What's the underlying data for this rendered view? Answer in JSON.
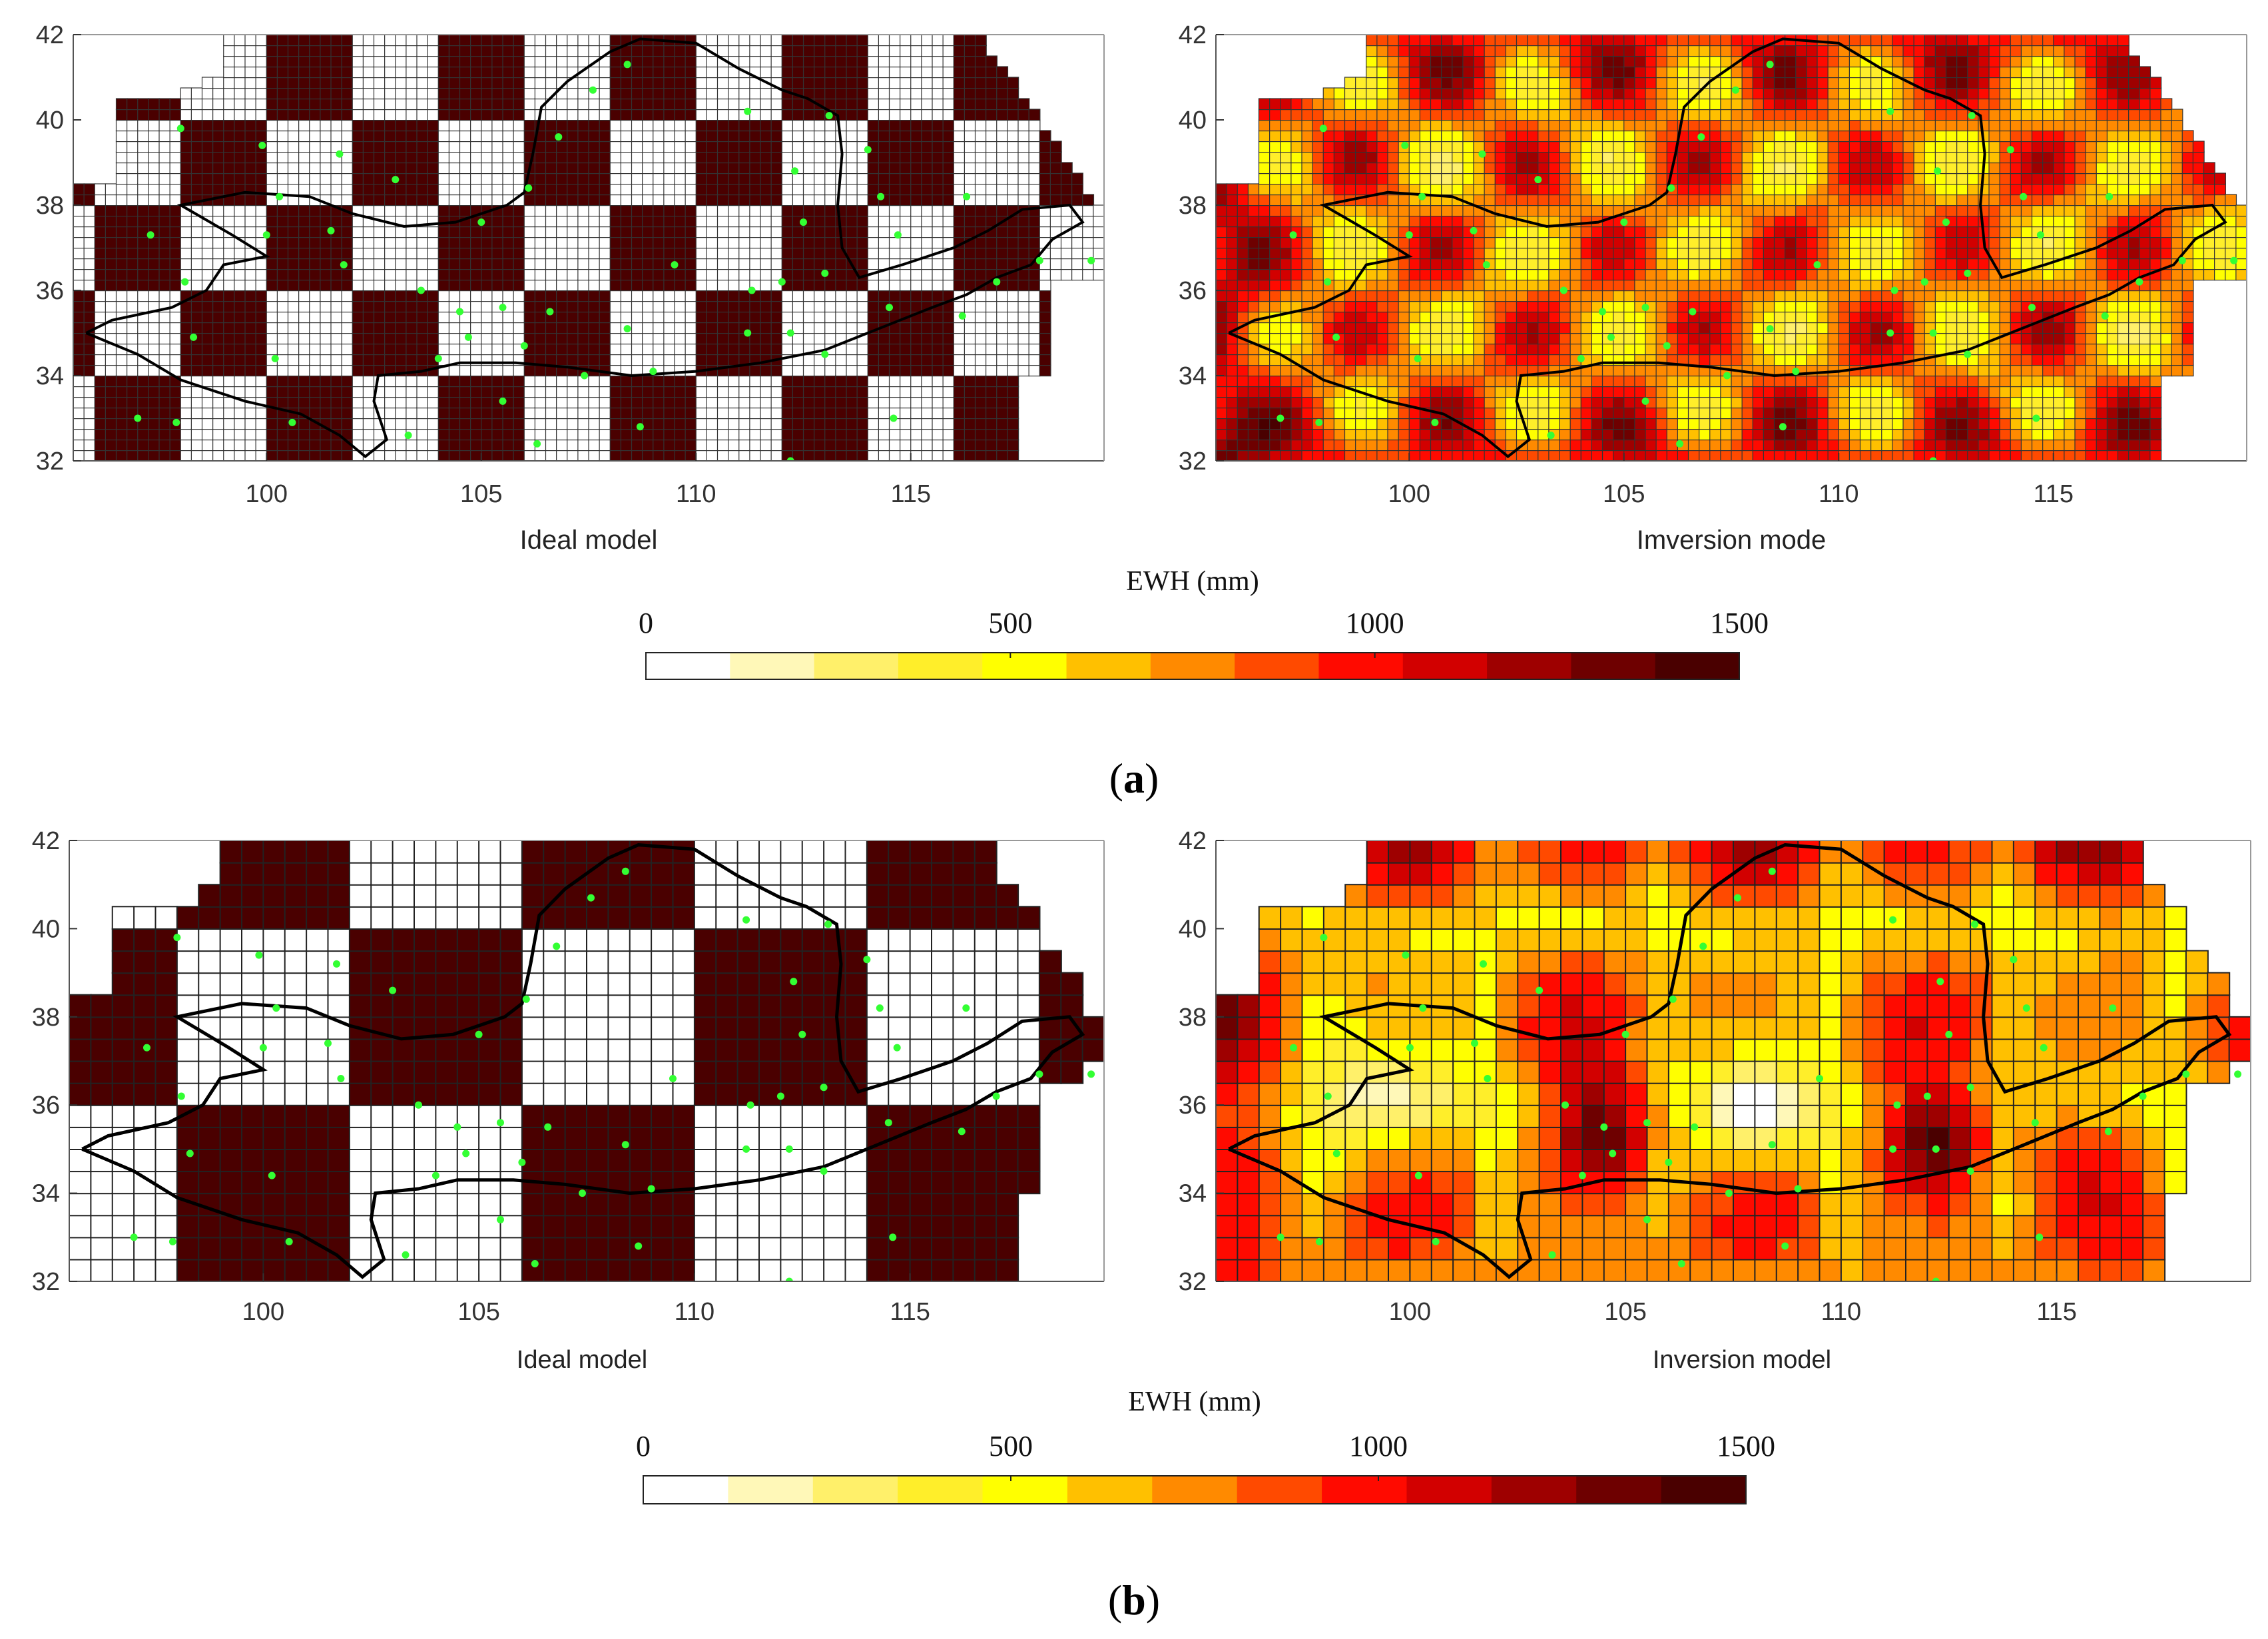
{
  "panels": [
    {
      "label": "a",
      "colorbar": {
        "title": "EWH (mm)",
        "ticks": [
          0,
          500,
          1000,
          1500
        ],
        "min": 0,
        "max": 1500,
        "colors": [
          "#ffffff",
          "#fff8b8",
          "#fff06a",
          "#ffee2a",
          "#ffff00",
          "#ffc000",
          "#ff8a00",
          "#ff4a00",
          "#ff0a00",
          "#d20000",
          "#9e0000",
          "#6e0000",
          "#4a0000"
        ]
      }
    },
    {
      "label": "b",
      "colorbar": {
        "title": "EWH (mm)",
        "ticks": [
          0,
          500,
          1000,
          1500
        ],
        "min": 0,
        "max": 1500,
        "colors": [
          "#ffffff",
          "#fff8b8",
          "#fff06a",
          "#ffee2a",
          "#ffff00",
          "#ffc000",
          "#ff8a00",
          "#ff4a00",
          "#ff0a00",
          "#d20000",
          "#9e0000",
          "#6e0000",
          "#4a0000"
        ]
      }
    }
  ],
  "chart_data": [
    {
      "type": "heatmap",
      "title": "",
      "xlabel": "Ideal model",
      "ylabel": "",
      "xlim": [
        95.5,
        119.5
      ],
      "ylim": [
        32,
        42
      ],
      "xticks": [
        100,
        105,
        110,
        115
      ],
      "yticks": [
        32,
        34,
        36,
        38,
        40,
        42
      ],
      "grid": true,
      "cell_size_deg": 0.25,
      "pattern": "checkerboard",
      "block_size_deg": 2,
      "block_values": [
        0,
        1500
      ]
    },
    {
      "type": "heatmap",
      "title": "",
      "xlabel": "Imversion mode",
      "ylabel": "",
      "xlim": [
        95.5,
        119.5
      ],
      "ylim": [
        32,
        42
      ],
      "xticks": [
        100,
        105,
        110,
        115
      ],
      "yticks": [
        32,
        34,
        36,
        38,
        40,
        42
      ],
      "grid": true,
      "cell_size_deg": 0.25,
      "pattern": "inversion",
      "block_size_deg": 2,
      "value_range": [
        0,
        1500
      ]
    },
    {
      "type": "heatmap",
      "title": "",
      "xlabel": "Ideal model",
      "ylabel": "",
      "xlim": [
        95.5,
        119.5
      ],
      "ylim": [
        32,
        42
      ],
      "xticks": [
        100,
        105,
        110,
        115
      ],
      "yticks": [
        32,
        34,
        36,
        38,
        40,
        42
      ],
      "grid": true,
      "cell_size_deg": 0.5,
      "pattern": "checkerboard",
      "block_size_deg": 4,
      "block_values": [
        0,
        1500
      ]
    },
    {
      "type": "heatmap",
      "title": "",
      "xlabel": "Inversion model",
      "ylabel": "",
      "xlim": [
        95.5,
        119.5
      ],
      "ylim": [
        32,
        42
      ],
      "xticks": [
        100,
        105,
        110,
        115
      ],
      "yticks": [
        32,
        34,
        36,
        38,
        40,
        42
      ],
      "grid": true,
      "cell_size_deg": 0.5,
      "pattern": "inversion",
      "block_size_deg": 4,
      "value_range": [
        0,
        1500
      ]
    }
  ],
  "map_overlay": {
    "boundary_color": "#000000",
    "station_color": "#33ff33",
    "boundary_main": [
      [
        95.8,
        35.0
      ],
      [
        97.0,
        34.5
      ],
      [
        98.0,
        33.9
      ],
      [
        99.5,
        33.4
      ],
      [
        100.8,
        33.1
      ],
      [
        101.7,
        32.6
      ],
      [
        102.3,
        32.1
      ],
      [
        102.8,
        32.5
      ],
      [
        102.5,
        33.4
      ],
      [
        102.6,
        34.0
      ],
      [
        103.6,
        34.1
      ],
      [
        104.5,
        34.3
      ],
      [
        105.8,
        34.3
      ],
      [
        107.0,
        34.2
      ],
      [
        108.5,
        34.0
      ],
      [
        110.0,
        34.1
      ],
      [
        111.5,
        34.3
      ],
      [
        113.0,
        34.6
      ],
      [
        114.5,
        35.2
      ],
      [
        115.5,
        35.6
      ],
      [
        116.3,
        35.9
      ],
      [
        117.0,
        36.3
      ],
      [
        117.8,
        36.6
      ],
      [
        118.3,
        37.2
      ],
      [
        119.0,
        37.6
      ],
      [
        118.7,
        38.0
      ],
      [
        117.6,
        37.9
      ],
      [
        116.8,
        37.4
      ],
      [
        116.0,
        37.0
      ],
      [
        114.8,
        36.6
      ],
      [
        113.8,
        36.3
      ],
      [
        113.4,
        37.0
      ],
      [
        113.3,
        38.0
      ],
      [
        113.4,
        39.2
      ],
      [
        113.3,
        40.1
      ],
      [
        112.6,
        40.5
      ],
      [
        112.0,
        40.7
      ],
      [
        111.0,
        41.2
      ],
      [
        110.0,
        41.8
      ],
      [
        108.7,
        41.9
      ],
      [
        108.0,
        41.6
      ],
      [
        107.0,
        40.9
      ],
      [
        106.4,
        40.3
      ],
      [
        106.2,
        39.2
      ],
      [
        106.0,
        38.3
      ],
      [
        105.6,
        38.0
      ],
      [
        104.4,
        37.6
      ],
      [
        103.2,
        37.5
      ],
      [
        102.0,
        37.8
      ],
      [
        101.0,
        38.2
      ],
      [
        99.5,
        38.3
      ],
      [
        98.0,
        38.0
      ],
      [
        99.2,
        37.3
      ],
      [
        100.0,
        36.8
      ],
      [
        99.0,
        36.6
      ],
      [
        98.6,
        36.0
      ],
      [
        97.8,
        35.6
      ],
      [
        96.4,
        35.3
      ],
      [
        95.8,
        35.0
      ]
    ],
    "stations": [
      [
        98.0,
        39.8
      ],
      [
        99.9,
        39.4
      ],
      [
        101.7,
        39.2
      ],
      [
        103.0,
        38.6
      ],
      [
        100.3,
        38.2
      ],
      [
        101.5,
        37.4
      ],
      [
        100.0,
        37.3
      ],
      [
        101.8,
        36.6
      ],
      [
        103.6,
        36.0
      ],
      [
        105.0,
        37.6
      ],
      [
        106.1,
        38.4
      ],
      [
        106.8,
        39.6
      ],
      [
        107.6,
        40.7
      ],
      [
        108.4,
        41.3
      ],
      [
        111.2,
        40.2
      ],
      [
        112.3,
        38.8
      ],
      [
        113.1,
        40.1
      ],
      [
        114.0,
        39.3
      ],
      [
        114.3,
        38.2
      ],
      [
        114.7,
        37.3
      ],
      [
        116.3,
        38.2
      ],
      [
        117.0,
        36.2
      ],
      [
        118.0,
        36.7
      ],
      [
        119.2,
        36.7
      ],
      [
        97.3,
        37.3
      ],
      [
        98.1,
        36.2
      ],
      [
        98.3,
        34.9
      ],
      [
        100.2,
        34.4
      ],
      [
        100.6,
        32.9
      ],
      [
        97.0,
        33.0
      ],
      [
        103.3,
        32.6
      ],
      [
        104.0,
        34.4
      ],
      [
        104.5,
        35.5
      ],
      [
        104.7,
        34.9
      ],
      [
        105.5,
        35.6
      ],
      [
        106.6,
        35.5
      ],
      [
        106.0,
        34.7
      ],
      [
        105.5,
        33.4
      ],
      [
        106.3,
        32.4
      ],
      [
        107.4,
        34.0
      ],
      [
        108.4,
        35.1
      ],
      [
        109.0,
        34.1
      ],
      [
        108.7,
        32.8
      ],
      [
        109.5,
        36.6
      ],
      [
        111.2,
        35.0
      ],
      [
        111.3,
        36.0
      ],
      [
        112.0,
        36.2
      ],
      [
        112.5,
        37.6
      ],
      [
        112.2,
        35.0
      ],
      [
        113.0,
        34.5
      ],
      [
        113.0,
        36.4
      ],
      [
        114.5,
        35.6
      ],
      [
        116.2,
        35.4
      ],
      [
        114.6,
        33.0
      ],
      [
        112.2,
        32.0
      ],
      [
        97.9,
        32.9
      ]
    ]
  }
}
